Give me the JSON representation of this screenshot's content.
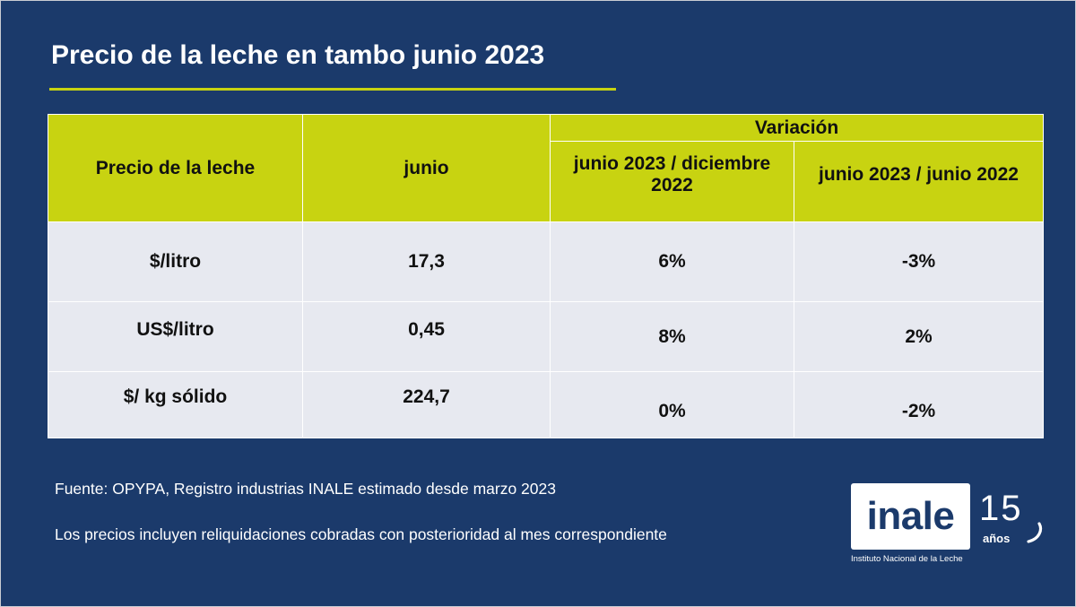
{
  "title": "Precio de la leche en tambo junio 2023",
  "table": {
    "header": {
      "col1": "Precio de la leche",
      "col2": "junio",
      "group": "Variación",
      "col3": "junio 2023 / diciembre 2022",
      "col4": "junio 2023 / junio 2022"
    },
    "rows": [
      {
        "label": "$/litro",
        "value": "17,3",
        "var_dic": "6%",
        "var_jun": "-3%"
      },
      {
        "label": "US$/litro",
        "value": "0,45",
        "var_dic": "8%",
        "var_jun": "2%"
      },
      {
        "label": "$/ kg sólido",
        "value": "224,7",
        "var_dic": "0%",
        "var_jun": "-2%"
      }
    ]
  },
  "footnotes": {
    "source": "Fuente: OPYPA, Registro industrias INALE estimado desde marzo 2023",
    "note": "Los precios incluyen reliquidaciones cobradas con posterioridad al mes correspondiente"
  },
  "logo": {
    "wordmark": "inale",
    "anniversary_number": "15",
    "anniversary_unit": "años",
    "subtitle": "Instituto Nacional de la Leche"
  },
  "colors": {
    "background": "#1b3a6b",
    "accent": "#c8d311",
    "row_fill": "#e7e9f0"
  }
}
